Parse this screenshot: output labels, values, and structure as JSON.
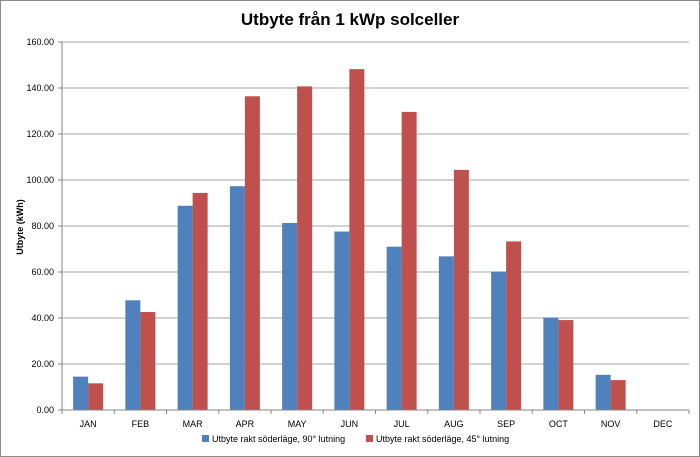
{
  "chart_data": {
    "type": "bar",
    "title": "Utbyte från 1 kWp solceller",
    "xlabel": "",
    "ylabel": "Utbyte (kWh)",
    "ylim": [
      0,
      160
    ],
    "ytick_step": 20,
    "ytick_decimals": 2,
    "grid": true,
    "legend_position": "bottom",
    "categories": [
      "JAN",
      "FEB",
      "MAR",
      "APR",
      "MAY",
      "JUN",
      "JUL",
      "AUG",
      "SEP",
      "OCT",
      "NOV",
      "DEC"
    ],
    "series": [
      {
        "name": "Utbyte rakt söderläge, 90° lutning",
        "color": "#4f81bd",
        "values": [
          14.5,
          47.7,
          88.8,
          97.3,
          81.3,
          77.6,
          71.0,
          66.8,
          60.2,
          40.2,
          15.3,
          0
        ]
      },
      {
        "name": "Utbyte rakt söderläge, 45° lutning",
        "color": "#c0504d",
        "values": [
          11.6,
          42.6,
          94.4,
          136.4,
          140.7,
          148.2,
          129.6,
          104.4,
          73.3,
          39.1,
          13.0,
          0
        ]
      }
    ]
  }
}
